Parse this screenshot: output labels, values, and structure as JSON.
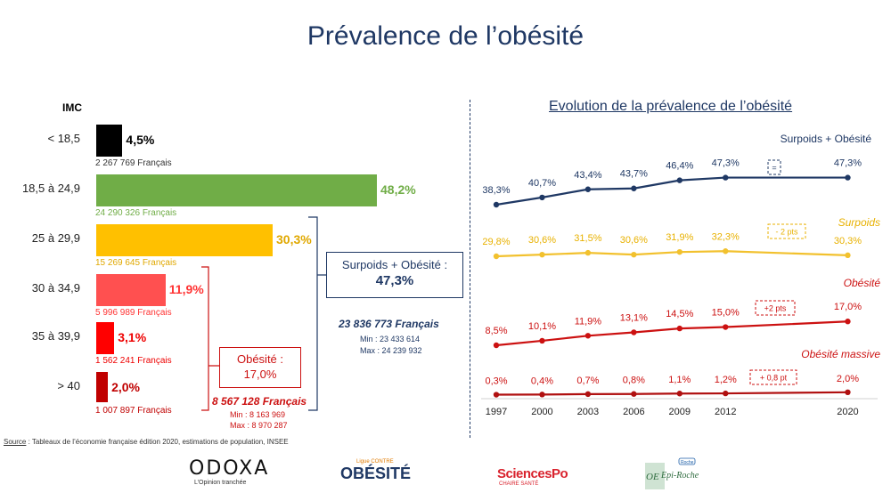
{
  "title": "Prévalence de l’obésité",
  "imc_header": "IMC",
  "chart_data": [
    {
      "type": "bar",
      "orientation": "horizontal",
      "categories": [
        "< 18,5",
        "18,5 à 24,9",
        "25 à 29,9",
        "30 à 34,9",
        "35 à 39,9",
        "> 40"
      ],
      "values": [
        4.5,
        48.2,
        30.3,
        11.9,
        3.1,
        2.0
      ],
      "value_labels": [
        "4,5%",
        "48,2%",
        "30,3%",
        "11,9%",
        "3,1%",
        "2,0%"
      ],
      "counts": [
        "2 267 769 Français",
        "24 290 326 Français",
        "15 269 645 Français",
        "5 996 989 Français",
        "1 562 241 Français",
        "1 007 897 Français"
      ],
      "colors": [
        "#000000",
        "#70ad47",
        "#ffc000",
        "#ff5050",
        "#ff0000",
        "#c00000"
      ],
      "label_colors": [
        "#000000",
        "#70ad47",
        "#e0a800",
        "#ff3333",
        "#ee0000",
        "#c00000"
      ],
      "count_colors": [
        "#333333",
        "#70ad47",
        "#e0a800",
        "#ff3333",
        "#ee0000",
        "#c00000"
      ],
      "xlim": [
        0,
        50
      ],
      "ylabel": "IMC"
    },
    {
      "type": "line",
      "title": "Evolution de la prévalence de l’obésité",
      "x": [
        1997,
        2000,
        2003,
        2006,
        2009,
        2012,
        2020
      ],
      "x_tick_labels": [
        "1997",
        "2000",
        "2003",
        "2006",
        "2009",
        "2012",
        "2020"
      ],
      "series": [
        {
          "name": "Surpoids + Obésité",
          "values": [
            38.3,
            40.7,
            43.4,
            43.7,
            46.4,
            47.3,
            47.3
          ],
          "labels": [
            "38,3%",
            "40,7%",
            "43,4%",
            "43,7%",
            "46,4%",
            "47,3%",
            "47,3%"
          ],
          "color": "#1f3864",
          "label_color": "#1f3864"
        },
        {
          "name": "Surpoids",
          "values": [
            29.8,
            30.6,
            31.5,
            30.6,
            31.9,
            32.3,
            30.3
          ],
          "labels": [
            "29,8%",
            "30,6%",
            "31,5%",
            "30,6%",
            "31,9%",
            "32,3%",
            "30,3%"
          ],
          "color": "#f2c12e",
          "label_color": "#e8b100"
        },
        {
          "name": "Obésité",
          "values": [
            8.5,
            10.1,
            11.9,
            13.1,
            14.5,
            15.0,
            17.0
          ],
          "labels": [
            "8,5%",
            "10,1%",
            "11,9%",
            "13,1%",
            "14,5%",
            "15,0%",
            "17,0%"
          ],
          "color": "#cc1111",
          "label_color": "#cc1111"
        },
        {
          "name": "Obésité massive",
          "values": [
            0.3,
            0.4,
            0.7,
            0.8,
            1.1,
            1.2,
            2.0
          ],
          "labels": [
            "0,3%",
            "0,4%",
            "0,7%",
            "0,8%",
            "1,1%",
            "1,2%",
            "2,0%"
          ],
          "color": "#b01010",
          "label_color": "#cc1111"
        }
      ],
      "changes": [
        "=",
        "- 2 pts",
        "+2 pts",
        "+ 0,8 pt"
      ],
      "change_colors": [
        "#1f3864",
        "#e8b100",
        "#cc1111",
        "#cc1111"
      ]
    }
  ],
  "summary": {
    "surpoids_obesite": {
      "label": "Surpoids + Obésité :",
      "value": "47,3%",
      "count": "23 836 773 Français",
      "min": "Min : 23 433 614",
      "max": "Max : 24 239 932"
    },
    "obesite": {
      "label": "Obésité :",
      "value": "17,0%",
      "count": "8 567 128 Français",
      "min": "Min : 8 163 969",
      "max": "Max : 8 970 287"
    }
  },
  "source": {
    "label": "Source",
    "text": " : Tableaux de l’économie française édition 2020, estimations de population, INSEE"
  },
  "logos": {
    "odoxa": {
      "name": "ODOXA",
      "tagline": "L’Opinion tranchée"
    },
    "lco": {
      "top": "Ligue CONTRE",
      "name": "OBÉSITÉ"
    },
    "sciencespo": {
      "name": "SciencesPo",
      "sub": "CHAIRE SANTÉ"
    },
    "epiroche": {
      "name": "Epi-Roche",
      "mark": "OE",
      "badge": "Roche"
    }
  }
}
